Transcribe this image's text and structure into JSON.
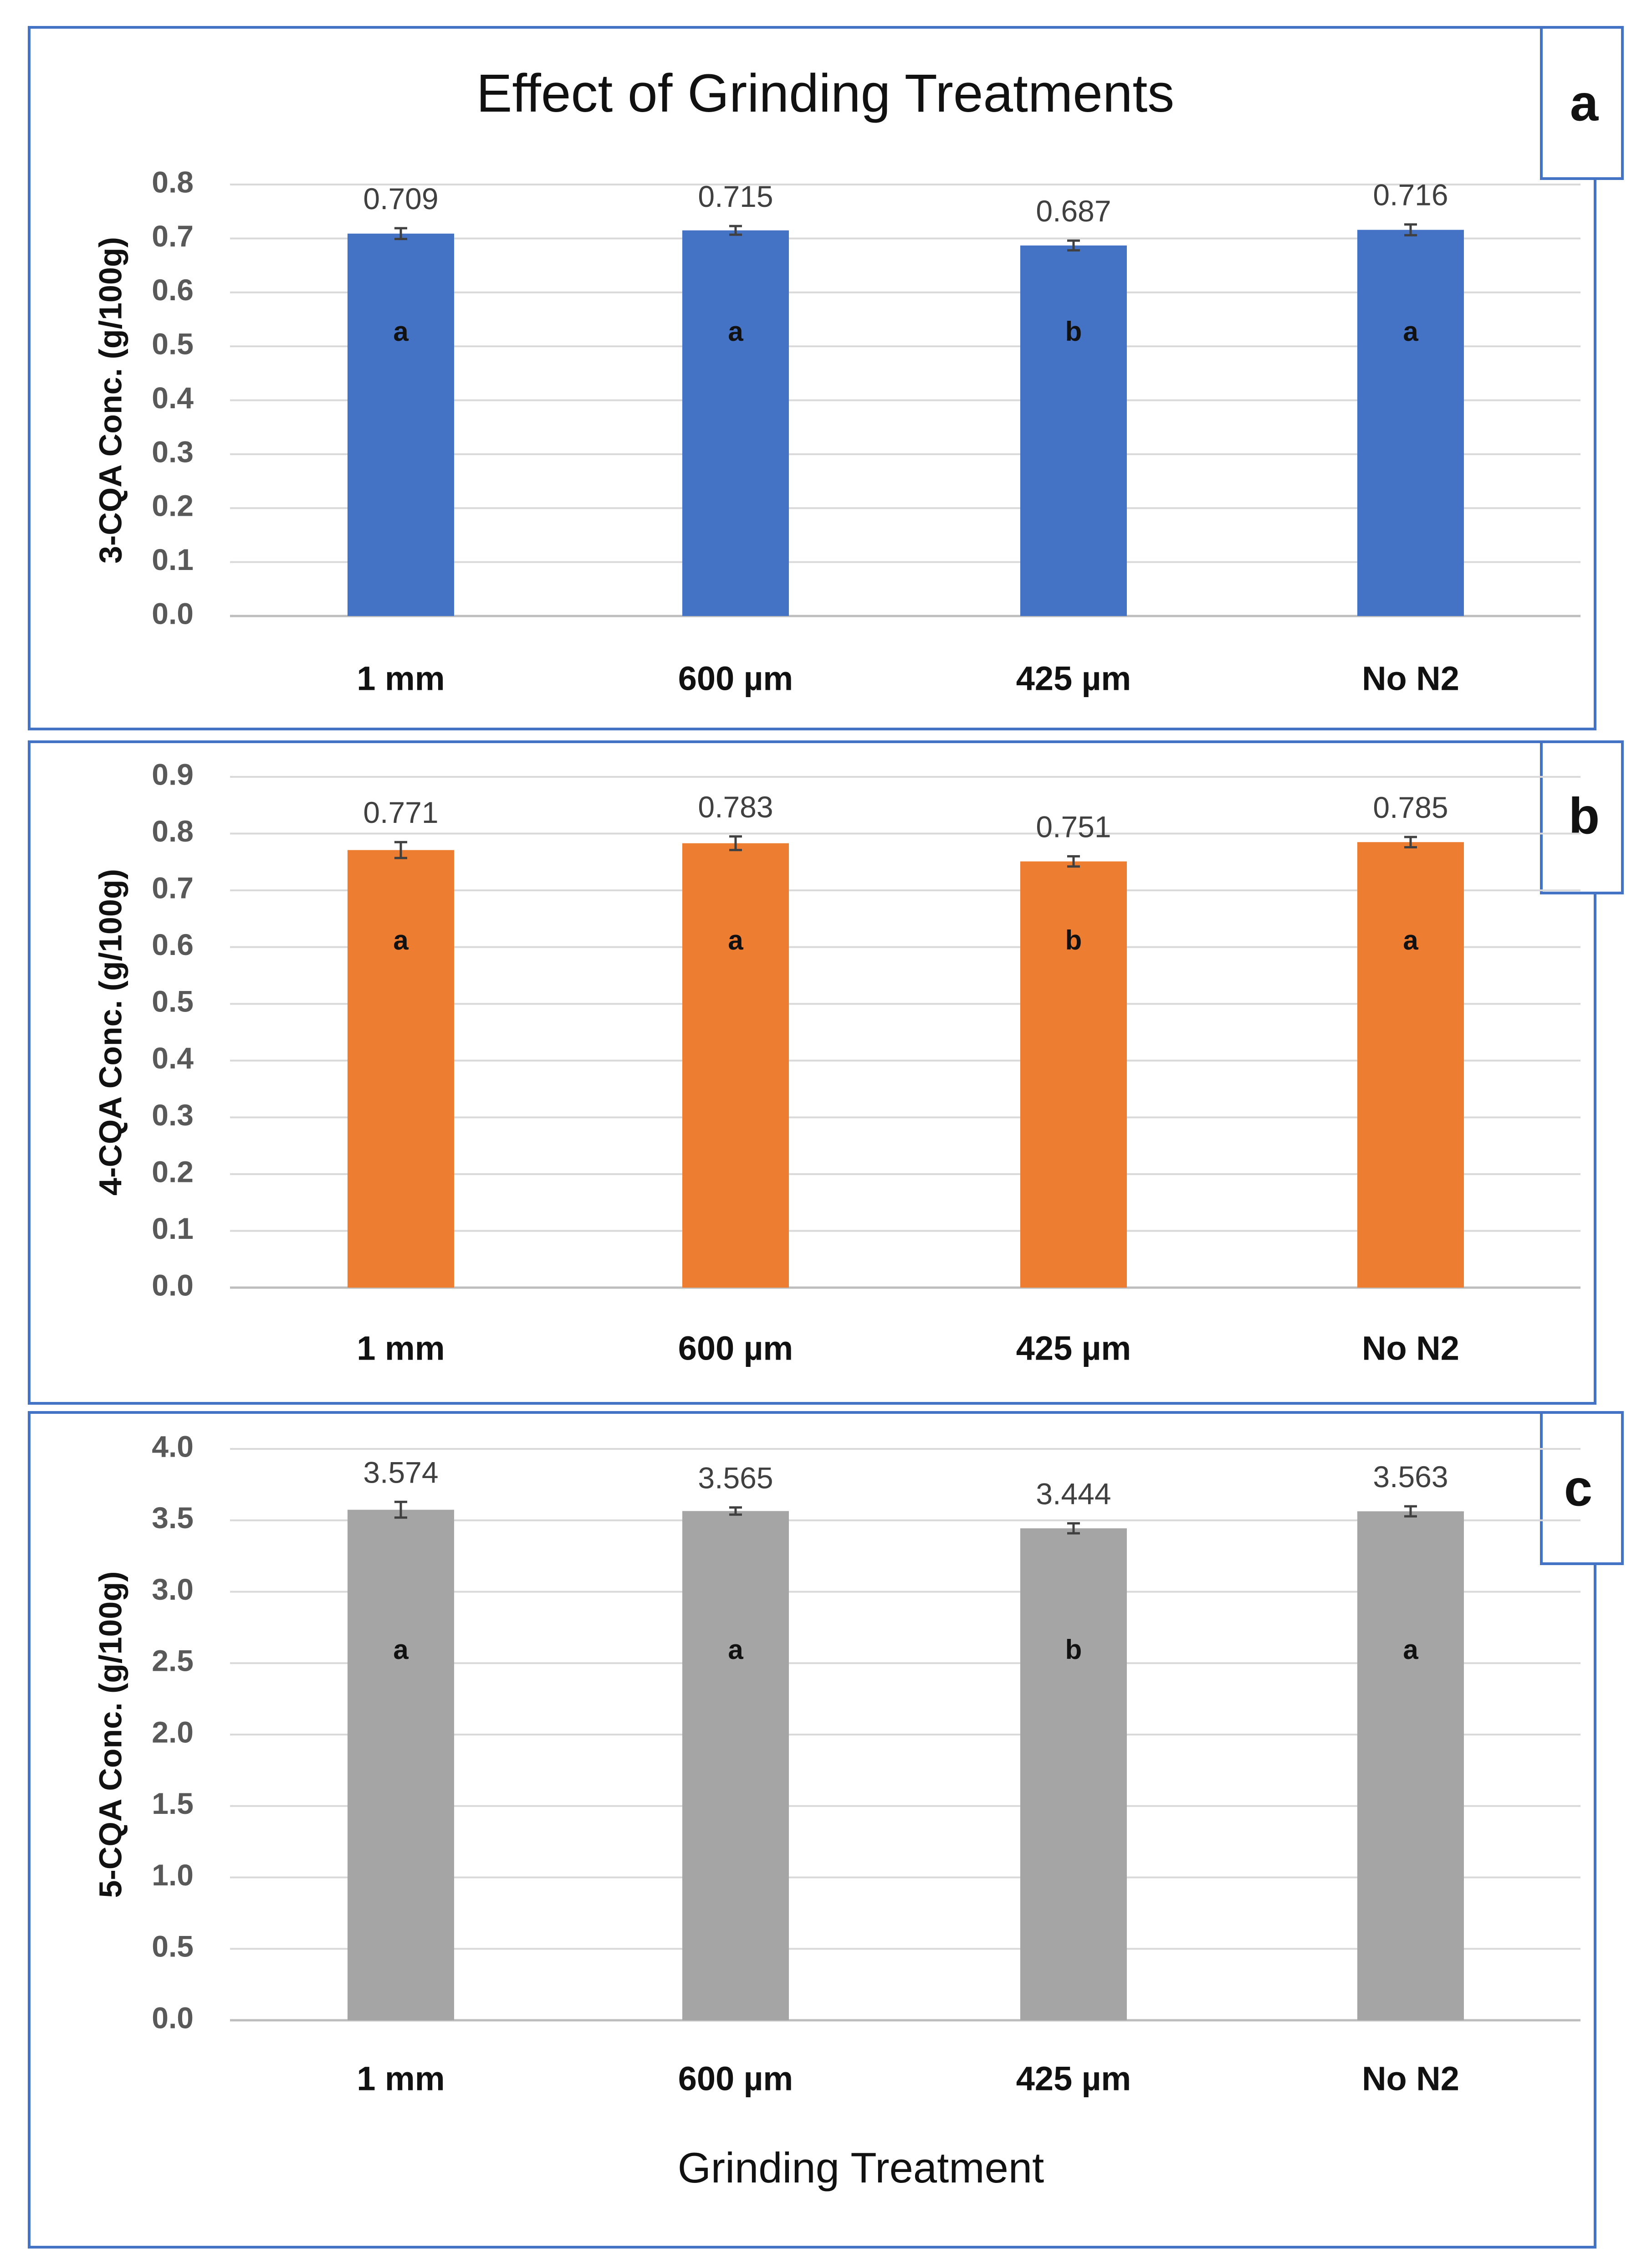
{
  "figure": {
    "title": "Effect of Grinding Treatments",
    "xlabel": "Grinding Treatment"
  },
  "chart_data": [
    {
      "type": "bar",
      "panel": "a",
      "title": "Effect of Grinding Treatments",
      "categories": [
        "1 mm",
        "600 µm",
        "425 µm",
        "No N2"
      ],
      "values": [
        0.709,
        0.715,
        0.687,
        0.716
      ],
      "value_labels": [
        "0.709",
        "0.715",
        "0.687",
        "0.716"
      ],
      "errors": [
        0.01,
        0.008,
        0.009,
        0.01
      ],
      "letters": [
        "a",
        "a",
        "b",
        "a"
      ],
      "ylabel": "3-CQA Conc. (g/100g)",
      "xlabel": "",
      "ylim": [
        0,
        0.8
      ],
      "yticks": [
        "0.0",
        "0.1",
        "0.2",
        "0.3",
        "0.4",
        "0.5",
        "0.6",
        "0.7",
        "0.8"
      ],
      "color": "#4472C4",
      "grid": true
    },
    {
      "type": "bar",
      "panel": "b",
      "categories": [
        "1 mm",
        "600 µm",
        "425 µm",
        "No N2"
      ],
      "values": [
        0.771,
        0.783,
        0.751,
        0.785
      ],
      "value_labels": [
        "0.771",
        "0.783",
        "0.751",
        "0.785"
      ],
      "errors": [
        0.014,
        0.012,
        0.009,
        0.009
      ],
      "letters": [
        "a",
        "a",
        "b",
        "a"
      ],
      "ylabel": "4-CQA Conc. (g/100g)",
      "xlabel": "",
      "ylim": [
        0,
        0.9
      ],
      "yticks": [
        "0.0",
        "0.1",
        "0.2",
        "0.3",
        "0.4",
        "0.5",
        "0.6",
        "0.7",
        "0.8",
        "0.9"
      ],
      "color": "#ED7D31",
      "grid": true
    },
    {
      "type": "bar",
      "panel": "c",
      "categories": [
        "1 mm",
        "600 µm",
        "425 µm",
        "No N2"
      ],
      "values": [
        3.574,
        3.565,
        3.444,
        3.563
      ],
      "value_labels": [
        "3.574",
        "3.565",
        "3.444",
        "3.563"
      ],
      "errors": [
        0.055,
        0.025,
        0.035,
        0.035
      ],
      "letters": [
        "a",
        "a",
        "b",
        "a"
      ],
      "ylabel": "5-CQA Conc. (g/100g)",
      "xlabel": "Grinding Treatment",
      "ylim": [
        0,
        4.0
      ],
      "yticks": [
        "0.0",
        "0.5",
        "1.0",
        "1.5",
        "2.0",
        "2.5",
        "3.0",
        "3.5",
        "4.0"
      ],
      "color": "#A5A5A5",
      "grid": true
    }
  ]
}
